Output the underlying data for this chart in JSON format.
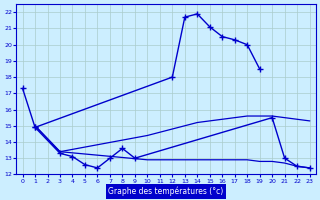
{
  "bg_color": "#cceeff",
  "line_color": "#0000cc",
  "grid_color": "#aacccc",
  "xlabel": "Graphe des températures (°c)",
  "xlabel_color": "#ffffff",
  "xlabel_bg": "#0000cc",
  "ylim": [
    12,
    22.5
  ],
  "xlim": [
    -0.5,
    23.5
  ],
  "yticks": [
    12,
    13,
    14,
    15,
    16,
    17,
    18,
    19,
    20,
    21,
    22
  ],
  "xticks": [
    0,
    1,
    2,
    3,
    4,
    5,
    6,
    7,
    8,
    9,
    10,
    11,
    12,
    13,
    14,
    15,
    16,
    17,
    18,
    19,
    20,
    21,
    22,
    23
  ],
  "series": {
    "line1": {
      "x": [
        0,
        1,
        12,
        13,
        14,
        15,
        16,
        17,
        18,
        19
      ],
      "y": [
        17.3,
        14.9,
        18.0,
        21.7,
        21.9,
        21.1,
        20.5,
        20.3,
        20.0,
        18.5
      ]
    },
    "line2": {
      "x": [
        1,
        3,
        4,
        5,
        6,
        7,
        8,
        9,
        20,
        21,
        22,
        23
      ],
      "y": [
        14.9,
        13.3,
        13.1,
        12.6,
        12.4,
        13.0,
        13.6,
        13.0,
        15.5,
        13.0,
        12.5,
        12.4
      ]
    },
    "line3": {
      "x": [
        1,
        3,
        10,
        11,
        12,
        13,
        14,
        15,
        16,
        17,
        18,
        19,
        20,
        21,
        22,
        23
      ],
      "y": [
        15.0,
        13.4,
        14.4,
        14.6,
        14.8,
        15.0,
        15.2,
        15.3,
        15.4,
        15.5,
        15.6,
        15.6,
        15.6,
        15.5,
        15.4,
        15.3
      ]
    },
    "line4": {
      "x": [
        1,
        3,
        10,
        11,
        12,
        13,
        14,
        15,
        16,
        17,
        18,
        19,
        20,
        21,
        22,
        23
      ],
      "y": [
        15.0,
        13.4,
        12.9,
        12.9,
        12.9,
        12.9,
        12.9,
        12.9,
        12.9,
        12.9,
        12.9,
        12.8,
        12.8,
        12.7,
        12.5,
        12.4
      ]
    }
  }
}
